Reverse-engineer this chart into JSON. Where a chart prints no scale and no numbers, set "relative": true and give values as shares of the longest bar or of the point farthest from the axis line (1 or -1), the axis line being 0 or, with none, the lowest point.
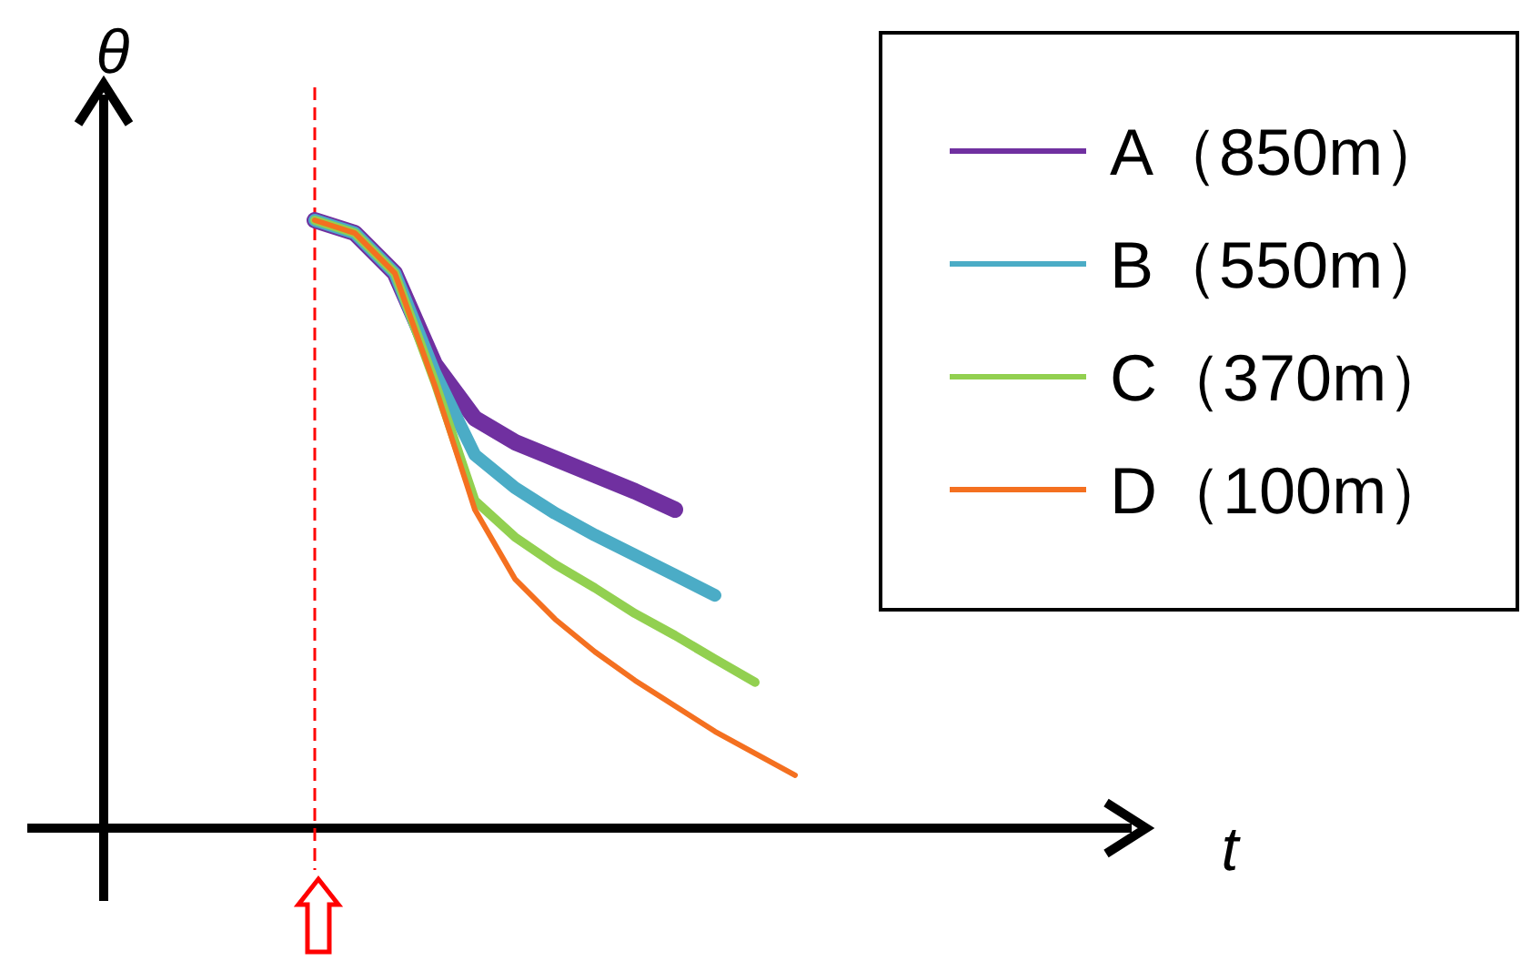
{
  "chart_data": {
    "type": "line",
    "relative": true,
    "annotations": [
      "t"
    ],
    "ylabel": "θ",
    "legend": "top right",
    "categories": [
      null,
      null,
      null,
      null,
      null,
      null,
      null,
      null,
      null,
      null,
      null,
      null,
      null
    ],
    "series": [
      {
        "name": "A（850m）",
        "color": "#7030a0",
        "values": [
          1,
          0.979,
          0.913,
          0.763,
          0.674,
          0.635,
          0.608,
          0.581,
          0.554,
          0.524,
          null,
          null,
          null
        ]
      },
      {
        "name": "B（550m）",
        "color": "#4bacc6",
        "values": [
          1,
          0.979,
          0.913,
          0.749,
          0.614,
          0.56,
          0.518,
          0.482,
          0.449,
          0.416,
          0.383,
          null,
          null
        ]
      },
      {
        "name": "C（370m）",
        "color": "#92d050",
        "values": [
          1,
          0.979,
          0.913,
          0.734,
          0.539,
          0.479,
          0.434,
          0.395,
          0.353,
          0.317,
          0.278,
          0.24,
          null
        ]
      },
      {
        "name": "D（100m）",
        "color": "#f47020",
        "values": [
          1,
          0.979,
          0.913,
          0.728,
          0.524,
          0.41,
          0.344,
          0.29,
          0.243,
          0.201,
          0.159,
          0.123,
          0.087
        ]
      }
    ]
  }
}
